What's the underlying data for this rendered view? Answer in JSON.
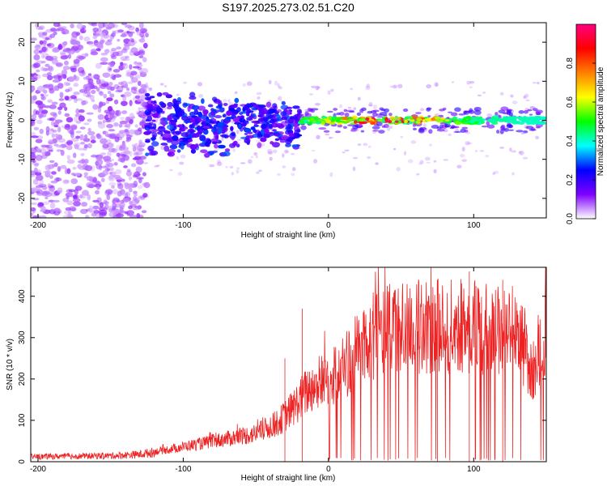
{
  "title": "S197.2025.273.02.51.C20",
  "chart_data": [
    {
      "type": "heatmap",
      "title": "S197.2025.273.02.51.C20",
      "xlabel": "Height of straight line (km)",
      "ylabel": "Frequency (Hz)",
      "xlim": [
        -205,
        150
      ],
      "ylim": [
        -25,
        25
      ],
      "xticks": [
        -200,
        -100,
        0,
        100
      ],
      "yticks": [
        -20,
        -10,
        0,
        10,
        20
      ],
      "xtick_labels": [
        "-200",
        "-100",
        "0",
        "100"
      ],
      "ytick_labels": [
        "-20",
        "-10",
        "0",
        "10",
        "20"
      ],
      "colorbar": {
        "label": "Normalized spectral amplitude",
        "range": [
          0,
          1
        ],
        "ticks": [
          0.0,
          0.2,
          0.4,
          0.6,
          0.8
        ],
        "tick_labels": [
          "0.0",
          "0.2",
          "0.4",
          "0.6",
          "0.8"
        ],
        "colors": [
          "#ffffff",
          "#7f00ff",
          "#0000ff",
          "#00ffff",
          "#00ff00",
          "#ffff00",
          "#ff8000",
          "#ff0000",
          "#ff0080"
        ]
      },
      "regions": [
        {
          "x": [
            -205,
            -125
          ],
          "freq_spread": [
            -25,
            25
          ],
          "amplitude": [
            0.0,
            0.15
          ],
          "description": "diffuse"
        },
        {
          "x": [
            -125,
            -20
          ],
          "freq_spread": [
            -12,
            8
          ],
          "amplitude": [
            0.1,
            0.3
          ]
        },
        {
          "x": [
            -20,
            150
          ],
          "freq_center": 0,
          "freq_spread": [
            -3,
            3
          ],
          "amplitude": [
            0.3,
            1.0
          ]
        }
      ]
    },
    {
      "type": "line",
      "title": "",
      "xlabel": "Height of straight line (km)",
      "ylabel": "SNR (10 * v/v)",
      "xlim": [
        -205,
        150
      ],
      "ylim": [
        0,
        470
      ],
      "xticks": [
        -200,
        -100,
        0,
        100
      ],
      "yticks": [
        0,
        100,
        200,
        300,
        400
      ],
      "xtick_labels": [
        "-200",
        "-100",
        "0",
        "100"
      ],
      "ytick_labels": [
        "0",
        "100",
        "200",
        "300",
        "400"
      ],
      "color": "#ee2222",
      "envelope": {
        "x": [
          -205,
          -150,
          -130,
          -110,
          -90,
          -70,
          -50,
          -35,
          -25,
          -15,
          -5,
          5,
          15,
          25,
          35,
          50,
          70,
          90,
          110,
          125,
          135,
          140,
          145,
          150
        ],
        "y": [
          15,
          18,
          22,
          35,
          50,
          65,
          80,
          110,
          150,
          200,
          230,
          250,
          290,
          340,
          370,
          380,
          385,
          385,
          380,
          370,
          330,
          240,
          330,
          380
        ]
      },
      "spikes": [
        {
          "x": -18,
          "y": 370
        },
        {
          "x": -30,
          "y": 250
        },
        {
          "x": 97,
          "y": 460
        },
        {
          "x": 75,
          "y": 440
        },
        {
          "x": 120,
          "y": 440
        }
      ]
    }
  ]
}
